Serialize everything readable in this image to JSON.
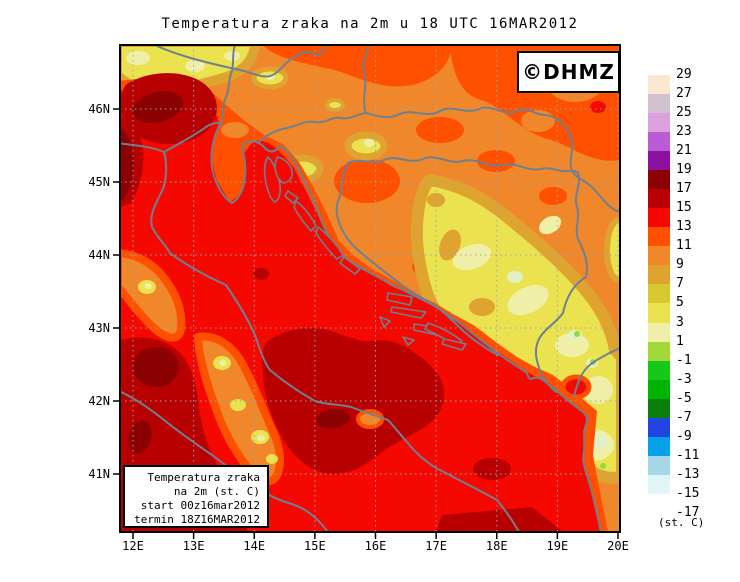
{
  "title": "Temperatura zraka na 2m u 18 UTC 16MAR2012",
  "watermark": "©DHMZ",
  "info_box": {
    "line1": "Temperatura zraka",
    "line2": "na 2m (st. C)",
    "line3": "start 00z16mar2012",
    "line4": "termin 18Z16MAR2012"
  },
  "axis": {
    "lat_labels": [
      "46N",
      "45N",
      "44N",
      "43N",
      "42N",
      "41N"
    ],
    "lon_labels": [
      "12E",
      "13E",
      "14E",
      "15E",
      "16E",
      "17E",
      "18E",
      "19E",
      "20E"
    ]
  },
  "colorbar": {
    "unit": "(st. C)",
    "labels": [
      "29",
      "27",
      "25",
      "23",
      "21",
      "19",
      "17",
      "15",
      "13",
      "11",
      "9",
      "7",
      "5",
      "3",
      "1",
      "-1",
      "-3",
      "-5",
      "-7",
      "-9",
      "-11",
      "-13",
      "-15",
      "-17"
    ],
    "colors": [
      "#FBE7D0",
      "#D0C0D0",
      "#DCA0DC",
      "#B95CD6",
      "#8E10A0",
      "#8B0000",
      "#B80000",
      "#F50800",
      "#FF5000",
      "#F1872B",
      "#DFA32F",
      "#D6C92F",
      "#EAE24E",
      "#EFEFA8",
      "#A4D838",
      "#18C818",
      "#00B400",
      "#0A7F0A",
      "#2244E0",
      "#05A0E8",
      "#A6D7E8",
      "#E0F6F6"
    ]
  },
  "map_palette": {
    "orange": "#F1872B",
    "orange_red": "#FF5000",
    "red": "#F50800",
    "dark_red": "#B80000",
    "maroon": "#8B0000",
    "goldenrod": "#DFA32F",
    "yellow": "#EAE24E",
    "pale_yellow": "#EFEFA8",
    "pale_green": "#E2F0C4",
    "green": "#98D63C",
    "coastline": "#6F8090",
    "grid": "#9AA8B4",
    "frame": "#000000",
    "watermark_blue": "#2222CC"
  }
}
